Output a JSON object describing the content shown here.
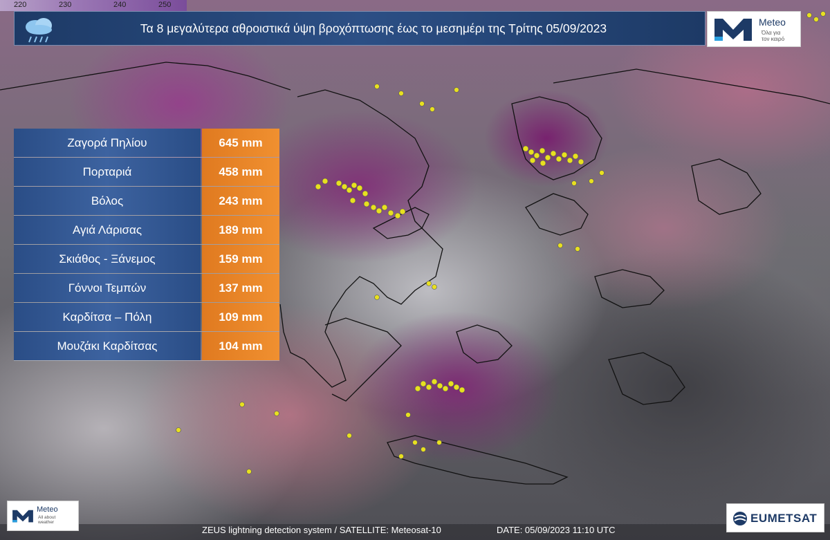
{
  "colors": {
    "title_bg": "#2c4f85",
    "station_bg": "#3d63a0",
    "value_bg": "#f09030",
    "lightning": "#e8e020",
    "high_precip": "#7d2873"
  },
  "scale": {
    "ticks": [
      "220",
      "230",
      "240",
      "250"
    ]
  },
  "header": {
    "title": "Τα 8 μεγαλύτερα αθροιστικά ύψη βροχόπτωσης έως το μεσημέρι της Τρίτης 05/09/2023",
    "icon": "rain-cloud-icon"
  },
  "logo_top": {
    "name": "Meteo",
    "tagline": "Όλα για τον καιρό"
  },
  "rainfall": [
    {
      "station": "Ζαγορά Πηλίου",
      "value": "645 mm",
      "mm": 645
    },
    {
      "station": "Πορταριά",
      "value": "458 mm",
      "mm": 458
    },
    {
      "station": "Βόλος",
      "value": "243 mm",
      "mm": 243
    },
    {
      "station": "Αγιά Λάρισας",
      "value": "189 mm",
      "mm": 189
    },
    {
      "station": "Σκιάθος - Ξάνεμος",
      "value": "159 mm",
      "mm": 159
    },
    {
      "station": "Γόννοι Τεμπών",
      "value": "137 mm",
      "mm": 137
    },
    {
      "station": "Καρδίτσα – Πόλη",
      "value": "109 mm",
      "mm": 109
    },
    {
      "station": "Μουζάκι Καρδίτσας",
      "value": "104 mm",
      "mm": 104
    }
  ],
  "footer": {
    "source": "ZEUS lightning detection system / SATELLITE: Meteosat-10",
    "date": "DATE: 05/09/2023 11:10 UTC"
  },
  "logo_bottom": {
    "name": "Meteo",
    "tagline": "All about weather"
  },
  "eumetsat": {
    "name": "EUMETSAT"
  }
}
